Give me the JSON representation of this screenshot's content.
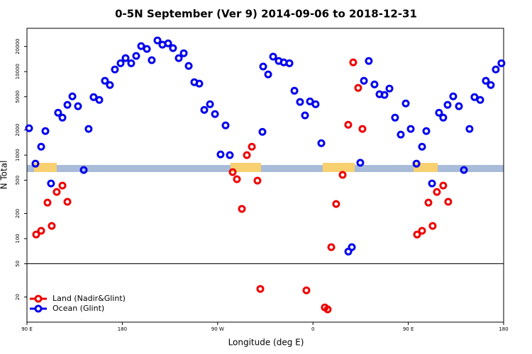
{
  "chart_data": {
    "type": "scatter",
    "title": "0-5N September (Ver 9)   2014-09-06 to 2018-12-31",
    "xlabel": "Longitude (deg E)",
    "ylabel": "N Total",
    "xlim": [
      90,
      540
    ],
    "xticks": [
      {
        "value": 90,
        "label": "90 E"
      },
      180,
      {
        "value": 270,
        "label": "90 W"
      },
      {
        "value": 360,
        "label": "0"
      },
      {
        "value": 450,
        "label": "90 E"
      },
      {
        "value": 540,
        "label": "180"
      }
    ],
    "ylim": [
      10,
      33000
    ],
    "log_y": true,
    "yticks": [
      20,
      50,
      100,
      200,
      500,
      1000,
      2000,
      5000,
      10000,
      20000
    ],
    "hline": 50,
    "legend": "bottom-left",
    "series": [
      {
        "name": "Land (Nadir&Glint)",
        "color": "#ee0000",
        "x": [
          98.7,
          103.4,
          109.4,
          113.4,
          118.1,
          123.5,
          128.2,
          284.2,
          288.2,
          292.9,
          297.6,
          302.3,
          307.6,
          310.3,
          353.8,
          371.2,
          373.9,
          377.3,
          381.9,
          388,
          393.3,
          398,
          402.7,
          406.7,
          458.3,
          463,
          469,
          473,
          477,
          483,
          487.7
        ],
        "values": [
          112,
          124,
          270,
          142,
          362,
          432,
          276,
          626,
          515,
          227,
          1000,
          1260,
          495,
          25,
          24,
          15,
          14.2,
          79,
          260,
          580,
          2310,
          12900,
          6380,
          2060,
          112,
          124,
          270,
          142,
          362,
          432,
          276
        ]
      },
      {
        "name": "Ocean (Glint)",
        "color": "#0000ee",
        "x": [
          92,
          98,
          103.4,
          107.4,
          112.7,
          119.4,
          123.5,
          128.2,
          132.9,
          138.2,
          143.6,
          148.2,
          152.9,
          158.3,
          163.6,
          168.3,
          173,
          178.4,
          183.1,
          188.4,
          193.1,
          197.8,
          203.2,
          207.8,
          213.2,
          217.9,
          223.3,
          227.9,
          233.3,
          238,
          242.7,
          248,
          252.7,
          257.4,
          262.8,
          267.5,
          272.8,
          277.5,
          281.5,
          312.3,
          313,
          317.7,
          322.4,
          327.7,
          332.4,
          337.8,
          342.5,
          347.8,
          352.5,
          357.2,
          362.5,
          367.9,
          393.4,
          396.7,
          404.7,
          408.1,
          412.7,
          418.1,
          422.8,
          427.5,
          432.2,
          437.5,
          442.9,
          447.6,
          452.3,
          457.7,
          463,
          467,
          472.4,
          479,
          483,
          487.1,
          492.4,
          497.8,
          502.5,
          507.8,
          512.5,
          517.9,
          523.2,
          527.9,
          532.6,
          537.9
        ],
        "values": [
          2100,
          790,
          1260,
          1940,
          458,
          3220,
          2810,
          4000,
          5050,
          3850,
          664,
          2060,
          4950,
          4580,
          7760,
          6900,
          10600,
          12600,
          14500,
          12600,
          15400,
          20200,
          18700,
          13700,
          23600,
          21000,
          21800,
          19100,
          14500,
          16600,
          11700,
          7460,
          7180,
          3480,
          4070,
          3100,
          1020,
          2270,
          1000,
          1900,
          11500,
          9250,
          15100,
          13400,
          12900,
          12600,
          5900,
          4330,
          2990,
          4400,
          4070,
          1390,
          70,
          79,
          810,
          7760,
          13400,
          7030,
          5360,
          5250,
          6270,
          2810,
          1760,
          4160,
          2060,
          790,
          1260,
          1940,
          458,
          3220,
          2810,
          4000,
          5050,
          3850,
          664,
          2060,
          4950,
          4580,
          7760,
          6900,
          10600,
          12600
        ]
      }
    ]
  }
}
